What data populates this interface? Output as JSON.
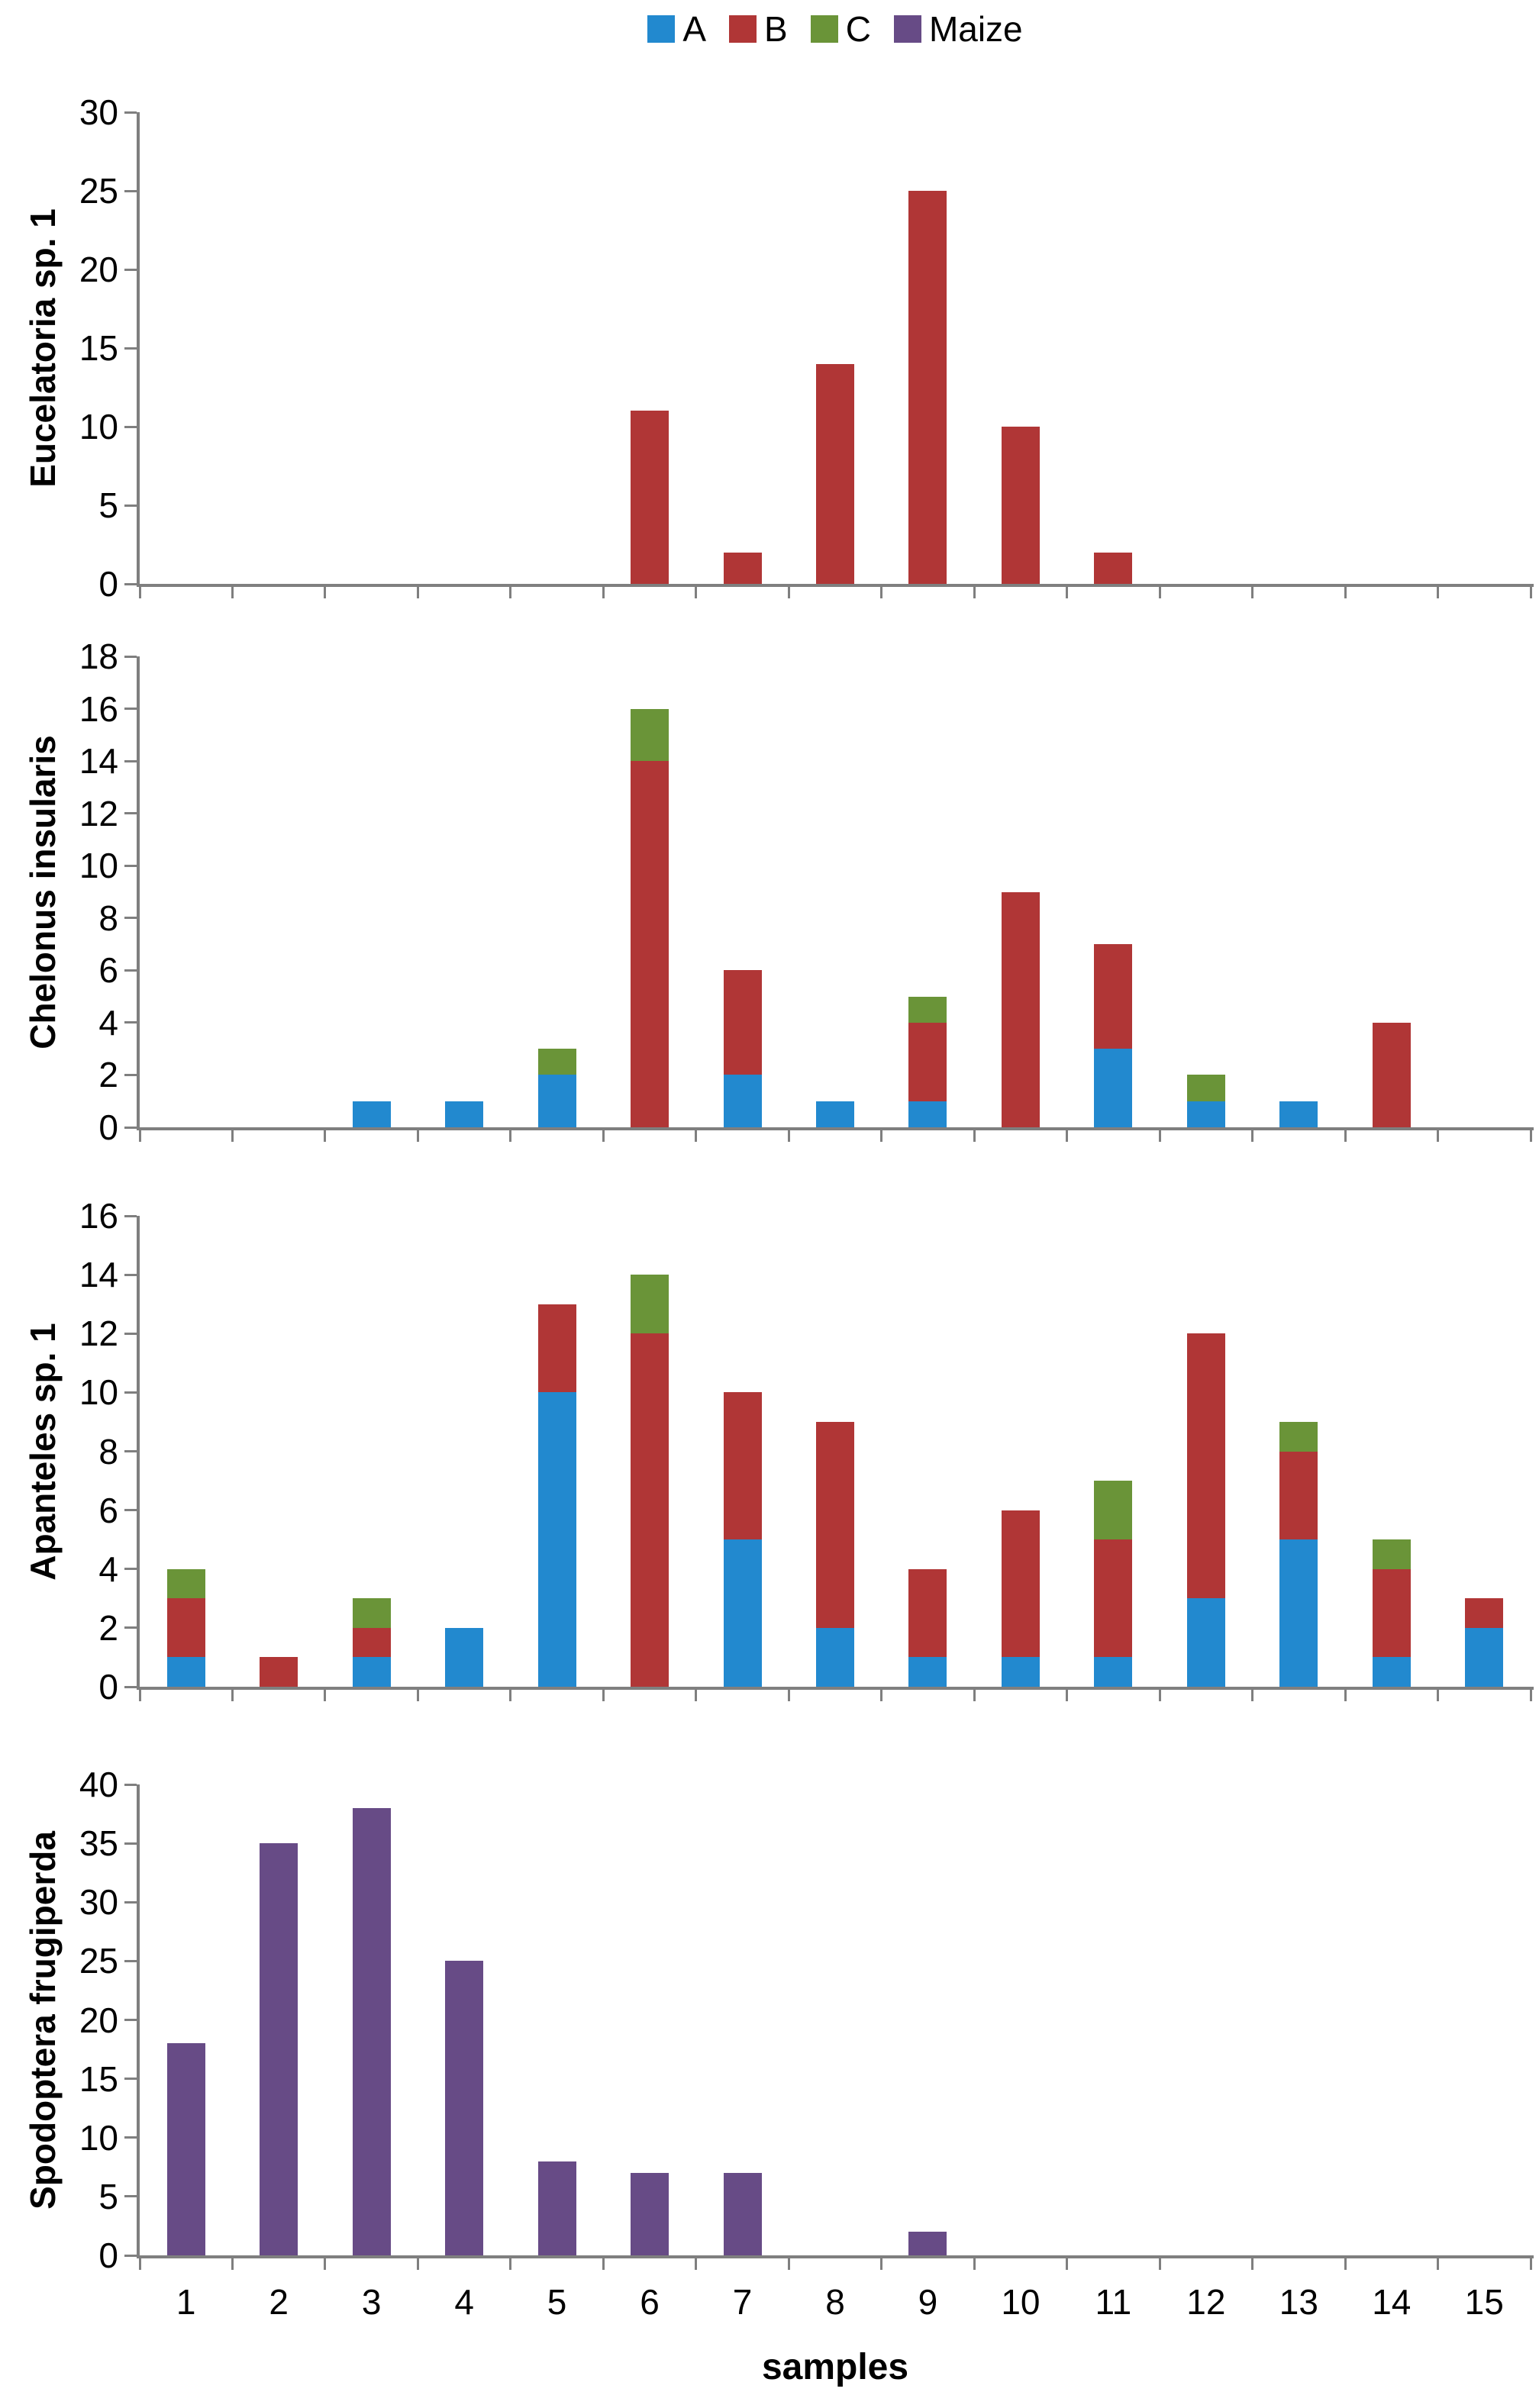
{
  "figure": {
    "legend": [
      {
        "label": "A",
        "color": "#2289cf"
      },
      {
        "label": "B",
        "color": "#b03636"
      },
      {
        "label": "C",
        "color": "#6a9438"
      },
      {
        "label": "Maize",
        "color": "#674b86"
      }
    ],
    "xlabel": "samples",
    "axis_color": "#7f7f7f",
    "text_color": "#000000"
  },
  "chart_data": [
    {
      "type": "bar",
      "stacked": true,
      "ylabel": "Eucelatoria sp. 1",
      "ylim": [
        0,
        30
      ],
      "ytick_step": 5,
      "yticks": [
        0,
        5,
        10,
        15,
        20,
        25,
        30
      ],
      "grid": false,
      "legend_position": "top-center",
      "categories": [
        "1",
        "2",
        "3",
        "4",
        "5",
        "6",
        "7",
        "8",
        "9",
        "10",
        "11",
        "12",
        "13",
        "14",
        "15"
      ],
      "series": [
        {
          "name": "A",
          "values": [
            0,
            0,
            0,
            0,
            0,
            0,
            0,
            0,
            0,
            0,
            0,
            0,
            0,
            0,
            0
          ]
        },
        {
          "name": "B",
          "values": [
            0,
            0,
            0,
            0,
            0,
            11,
            2,
            14,
            25,
            10,
            2,
            0,
            0,
            0,
            0
          ]
        },
        {
          "name": "C",
          "values": [
            0,
            0,
            0,
            0,
            0,
            0,
            0,
            0,
            0,
            0,
            0,
            0,
            0,
            0,
            0
          ]
        }
      ]
    },
    {
      "type": "bar",
      "stacked": true,
      "ylabel": "Chelonus insularis",
      "ylim": [
        0,
        18
      ],
      "ytick_step": 2,
      "yticks": [
        0,
        2,
        4,
        6,
        8,
        10,
        12,
        14,
        16,
        18
      ],
      "grid": false,
      "categories": [
        "1",
        "2",
        "3",
        "4",
        "5",
        "6",
        "7",
        "8",
        "9",
        "10",
        "11",
        "12",
        "13",
        "14",
        "15"
      ],
      "series": [
        {
          "name": "A",
          "values": [
            0,
            0,
            1,
            1,
            2,
            0,
            2,
            1,
            1,
            0,
            3,
            1,
            1,
            0,
            0
          ]
        },
        {
          "name": "B",
          "values": [
            0,
            0,
            0,
            0,
            0,
            14,
            4,
            0,
            3,
            9,
            4,
            0,
            0,
            4,
            0
          ]
        },
        {
          "name": "C",
          "values": [
            0,
            0,
            0,
            0,
            1,
            2,
            0,
            0,
            1,
            0,
            0,
            1,
            0,
            0,
            0
          ]
        }
      ]
    },
    {
      "type": "bar",
      "stacked": true,
      "ylabel": "Apanteles sp. 1",
      "ylim": [
        0,
        16
      ],
      "ytick_step": 2,
      "yticks": [
        0,
        2,
        4,
        6,
        8,
        10,
        12,
        14,
        16
      ],
      "grid": false,
      "categories": [
        "1",
        "2",
        "3",
        "4",
        "5",
        "6",
        "7",
        "8",
        "9",
        "10",
        "11",
        "12",
        "13",
        "14",
        "15"
      ],
      "series": [
        {
          "name": "A",
          "values": [
            1,
            0,
            1,
            2,
            10,
            0,
            5,
            2,
            1,
            1,
            1,
            3,
            5,
            1,
            2
          ]
        },
        {
          "name": "B",
          "values": [
            2,
            1,
            1,
            0,
            3,
            12,
            5,
            7,
            3,
            5,
            4,
            9,
            3,
            3,
            1
          ]
        },
        {
          "name": "C",
          "values": [
            1,
            0,
            1,
            0,
            0,
            2,
            0,
            0,
            0,
            0,
            2,
            0,
            1,
            1,
            0
          ]
        }
      ]
    },
    {
      "type": "bar",
      "stacked": true,
      "ylabel": "Spodoptera frugiperda",
      "ylim": [
        0,
        40
      ],
      "ytick_step": 5,
      "yticks": [
        0,
        5,
        10,
        15,
        20,
        25,
        30,
        35,
        40
      ],
      "grid": false,
      "categories": [
        "1",
        "2",
        "3",
        "4",
        "5",
        "6",
        "7",
        "8",
        "9",
        "10",
        "11",
        "12",
        "13",
        "14",
        "15"
      ],
      "series": [
        {
          "name": "Maize",
          "values": [
            18,
            35,
            38,
            25,
            8,
            7,
            7,
            0,
            2,
            0,
            0,
            0,
            0,
            0,
            0
          ]
        }
      ]
    }
  ]
}
